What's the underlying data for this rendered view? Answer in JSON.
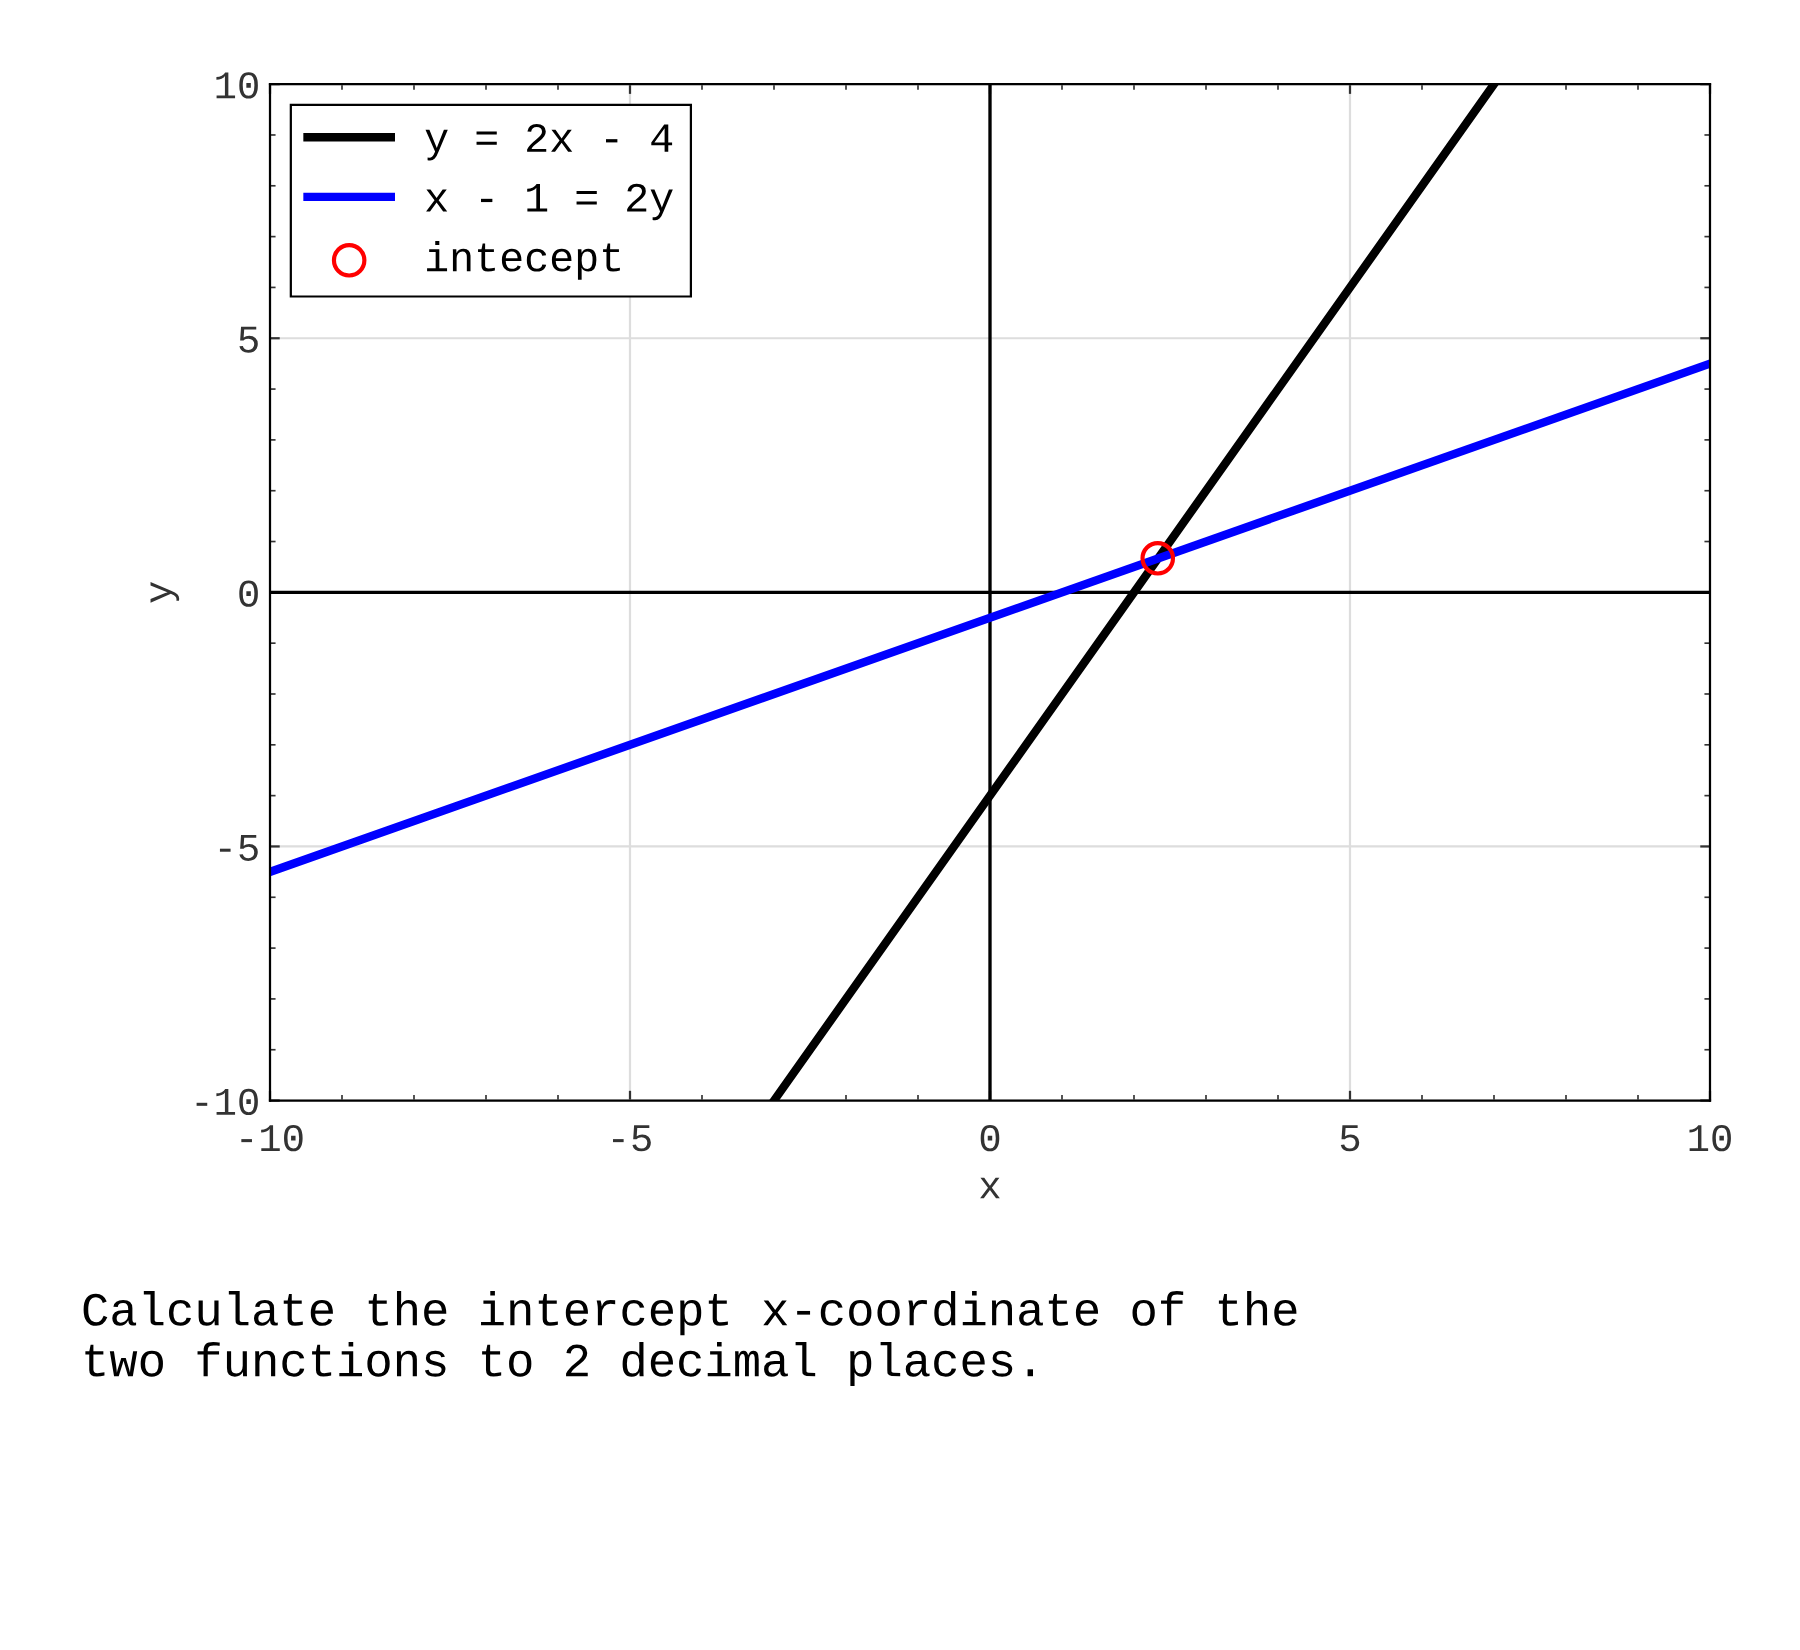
{
  "chart_data": {
    "type": "line",
    "xlabel": "x",
    "ylabel": "y",
    "series": [
      {
        "name": "y = 2x - 4",
        "color": "#000000",
        "x": [
          -3,
          7
        ],
        "values": [
          -10,
          10
        ],
        "marker": "none"
      },
      {
        "name": "x - 1 = 2y",
        "color": "#0000ff",
        "x": [
          -10,
          10
        ],
        "values": [
          -5.5,
          4.5
        ],
        "marker": "none"
      },
      {
        "name": "intecept",
        "type": "scatter",
        "color": "#ff0000",
        "x": [
          2.33
        ],
        "values": [
          0.67
        ],
        "marker": "circle"
      },
      {
        "color": "#000000",
        "x": [
          0,
          0
        ],
        "values": [
          -10,
          10
        ],
        "marker": "none"
      },
      {
        "color": "#000000",
        "x": [
          -10,
          10
        ],
        "values": [
          0,
          0
        ],
        "marker": "none"
      }
    ],
    "xlim": [
      -10,
      10
    ],
    "ylim": [
      -10,
      10
    ],
    "xticks": [
      -10,
      -5,
      0,
      5,
      10
    ],
    "yticks": [
      -10,
      -5,
      0,
      5,
      10
    ],
    "grid": true,
    "legend": "top left",
    "line_style": "solid",
    "annotations": [
      "Calculate the intercept x-coordinate of the\ntwo functions to 2 decimal places."
    ]
  }
}
